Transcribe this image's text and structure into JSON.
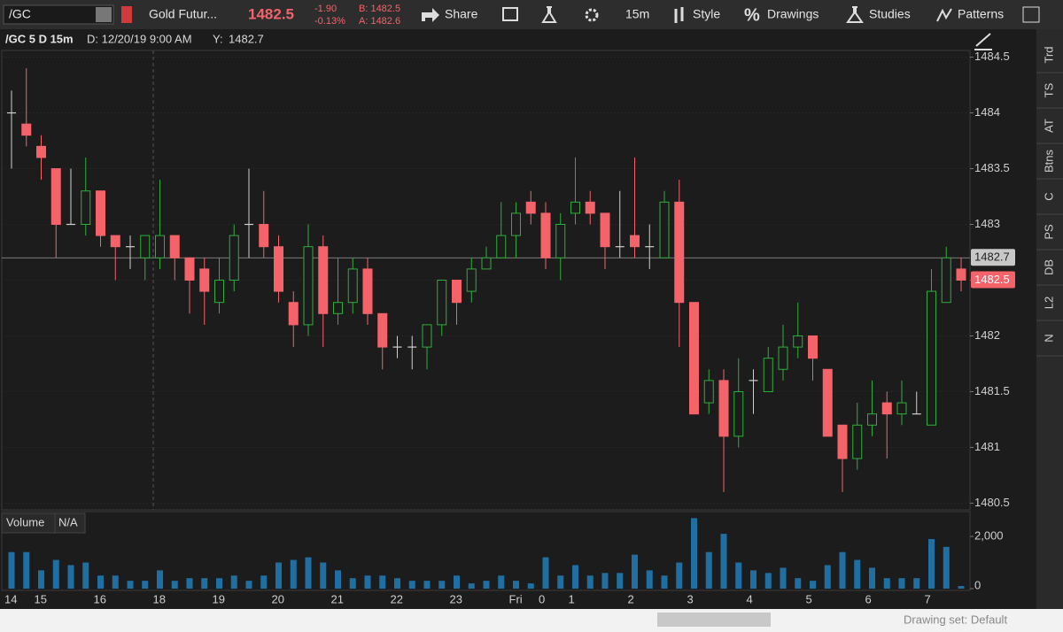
{
  "toolbar": {
    "symbol": "/GC",
    "description": "Gold Futur...",
    "last": "1482.5",
    "change": "-1.90",
    "change_pct": "-0.13%",
    "bid": "B: 1482.5",
    "ask": "A: 1482.6",
    "share": "Share",
    "interval": "15m",
    "style": "Style",
    "drawings": "Drawings",
    "studies": "Studies",
    "patterns": "Patterns"
  },
  "header": {
    "symbol_period": "/GC 5 D 15m",
    "date": "D: 12/20/19 9:00 AM",
    "y_label": "Y:"
  },
  "sidebar": [
    "Trd",
    "TS",
    "AT",
    "Btns",
    "C",
    "PS",
    "DB",
    "L2",
    "N"
  ],
  "volume_panel": {
    "title": "Volume",
    "value": "N/A"
  },
  "footer": {
    "drawing_set": "Drawing set: Default"
  },
  "chart_data": {
    "type": "candlestick",
    "categories": [
      "14",
      null,
      "15",
      null,
      null,
      null,
      "16",
      null,
      null,
      null,
      "18",
      null,
      null,
      null,
      "19",
      null,
      null,
      null,
      "20",
      null,
      null,
      null,
      "21",
      null,
      null,
      null,
      "22",
      null,
      null,
      null,
      "23",
      null,
      null,
      null,
      "Fri",
      null,
      "0",
      null,
      "1",
      null,
      null,
      null,
      "2",
      null,
      null,
      null,
      "3",
      null,
      null,
      null,
      "4",
      null,
      null,
      null,
      "5",
      null,
      null,
      null,
      "6",
      null,
      null,
      null,
      "7",
      null,
      null
    ],
    "open": [
      1484.0,
      1483.9,
      1483.7,
      1483.5,
      1483.0,
      1483.0,
      1483.3,
      1482.9,
      1482.8,
      1482.7,
      1482.7,
      1482.9,
      1482.7,
      1482.6,
      1482.3,
      1482.5,
      1483.0,
      1483.0,
      1482.8,
      1482.3,
      1482.1,
      1482.8,
      1482.2,
      1482.3,
      1482.6,
      1482.2,
      1481.9,
      1481.9,
      1481.9,
      1482.1,
      1482.5,
      1482.4,
      1482.6,
      1482.7,
      1482.9,
      1483.2,
      1483.1,
      1482.7,
      1483.1,
      1483.2,
      1483.1,
      1482.8,
      1482.9,
      1482.8,
      1482.7,
      1483.2,
      1482.3,
      1481.4,
      1481.6,
      1481.1,
      1481.6,
      1481.5,
      1481.7,
      1481.9,
      1482.0,
      1481.7,
      1481.2,
      1480.9,
      1481.2,
      1481.4,
      1481.3,
      1481.3,
      1481.2,
      1482.3,
      1482.6
    ],
    "high": [
      1484.2,
      1484.4,
      1483.8,
      1483.5,
      1483.5,
      1483.6,
      1483.3,
      1482.9,
      1482.9,
      1482.9,
      1483.4,
      1482.9,
      1482.7,
      1482.7,
      1482.7,
      1483.0,
      1483.5,
      1483.3,
      1482.9,
      1482.4,
      1483.0,
      1482.9,
      1482.7,
      1482.7,
      1482.7,
      1482.2,
      1482.0,
      1482.0,
      1482.1,
      1482.5,
      1482.5,
      1482.7,
      1482.8,
      1483.2,
      1483.2,
      1483.3,
      1483.2,
      1483.1,
      1483.6,
      1483.3,
      1483.1,
      1483.3,
      1483.6,
      1483.0,
      1483.3,
      1483.4,
      1482.3,
      1481.7,
      1481.7,
      1481.8,
      1481.7,
      1481.9,
      1482.1,
      1482.3,
      1482.0,
      1481.7,
      1481.2,
      1481.4,
      1481.6,
      1481.5,
      1481.6,
      1481.5,
      1482.6,
      1482.8,
      1482.7
    ],
    "low": [
      1483.5,
      1483.7,
      1483.4,
      1482.7,
      1483.0,
      1482.9,
      1482.8,
      1482.5,
      1482.6,
      1482.5,
      1482.6,
      1482.5,
      1482.2,
      1482.1,
      1482.2,
      1482.4,
      1482.7,
      1482.7,
      1482.3,
      1481.9,
      1482.0,
      1481.9,
      1482.1,
      1482.2,
      1482.1,
      1481.7,
      1481.8,
      1481.7,
      1481.7,
      1482.0,
      1482.1,
      1482.3,
      1482.6,
      1482.7,
      1482.7,
      1483.0,
      1482.6,
      1482.5,
      1483.0,
      1483.0,
      1482.6,
      1482.7,
      1482.7,
      1482.6,
      1482.7,
      1481.9,
      1481.3,
      1481.3,
      1480.6,
      1481.0,
      1481.3,
      1481.5,
      1481.6,
      1481.8,
      1481.6,
      1481.1,
      1480.6,
      1480.8,
      1481.1,
      1480.9,
      1481.2,
      1481.3,
      1481.2,
      1482.3,
      1482.4
    ],
    "close": [
      1484.0,
      1483.8,
      1483.6,
      1483.0,
      1483.0,
      1483.3,
      1482.9,
      1482.8,
      1482.8,
      1482.9,
      1482.9,
      1482.7,
      1482.5,
      1482.4,
      1482.5,
      1482.9,
      1483.0,
      1482.8,
      1482.4,
      1482.1,
      1482.8,
      1482.2,
      1482.3,
      1482.6,
      1482.2,
      1481.9,
      1481.9,
      1481.9,
      1482.1,
      1482.5,
      1482.3,
      1482.6,
      1482.7,
      1482.9,
      1483.1,
      1483.1,
      1482.7,
      1483.0,
      1483.2,
      1483.1,
      1482.8,
      1482.8,
      1482.8,
      1482.8,
      1483.2,
      1482.3,
      1481.3,
      1481.6,
      1481.1,
      1481.5,
      1481.6,
      1481.8,
      1481.9,
      1482.0,
      1481.8,
      1481.1,
      1480.9,
      1481.2,
      1481.3,
      1481.3,
      1481.4,
      1481.3,
      1482.4,
      1482.7,
      1482.5
    ],
    "volume": [
      1400,
      1400,
      700,
      1100,
      900,
      1000,
      500,
      500,
      300,
      300,
      700,
      300,
      400,
      400,
      400,
      500,
      300,
      500,
      1000,
      1100,
      1200,
      1000,
      700,
      400,
      500,
      500,
      400,
      300,
      300,
      300,
      500,
      200,
      300,
      500,
      300,
      200,
      1200,
      500,
      900,
      500,
      600,
      600,
      1300,
      700,
      500,
      1000,
      2700,
      1400,
      2100,
      1000,
      700,
      600,
      800,
      400,
      300,
      900,
      1400,
      1100,
      800,
      400,
      400,
      400,
      1900,
      1600,
      100
    ],
    "ylim": [
      1480.44,
      1484.56
    ],
    "yticks": [
      1480.5,
      1481,
      1481.5,
      1482,
      1482.5,
      1483,
      1483.5,
      1484,
      1484.5
    ],
    "y2lim": [
      0,
      2950
    ],
    "y2ticks": [
      0,
      {
        "value": 2000,
        "label": "2,000"
      }
    ],
    "crosshair": 1482.7,
    "last_price": 1482.5,
    "up_color": "#2fae3a",
    "down_color": "#f4636a",
    "doji_color": "#d0d0d0",
    "volume_color": "#1f6fa3",
    "grid": true
  }
}
